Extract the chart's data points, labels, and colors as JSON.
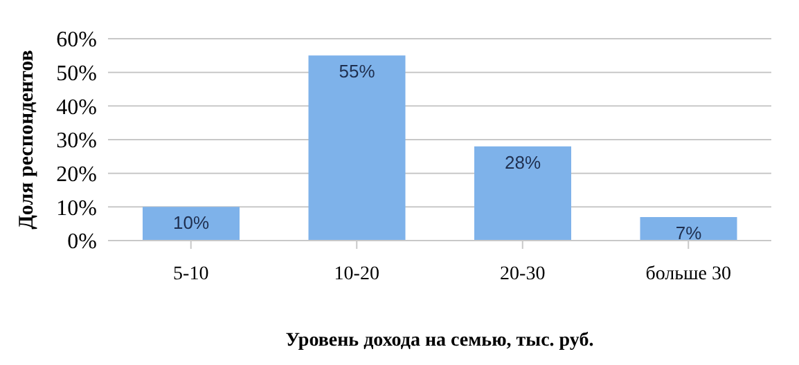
{
  "chart_data": {
    "type": "bar",
    "xlabel": "Уровень дохода на семью, тыс. руб.",
    "ylabel": "Доля респондентов",
    "categories": [
      "5-10",
      "10-20",
      "20-30",
      "больше 30"
    ],
    "values": [
      10,
      55,
      28,
      7
    ],
    "value_labels": [
      "10%",
      "55%",
      "28%",
      "7%"
    ],
    "color": "#7eb2ea",
    "ylim": [
      0,
      60
    ],
    "yticks": [
      {
        "value": 0,
        "label": "0%"
      },
      {
        "value": 10,
        "label": "10%"
      },
      {
        "value": 20,
        "label": "20%"
      },
      {
        "value": 30,
        "label": "30%"
      },
      {
        "value": 40,
        "label": "40%"
      },
      {
        "value": 50,
        "label": "50%"
      },
      {
        "value": 60,
        "label": "60%"
      }
    ],
    "grid": "y",
    "legend": false
  }
}
